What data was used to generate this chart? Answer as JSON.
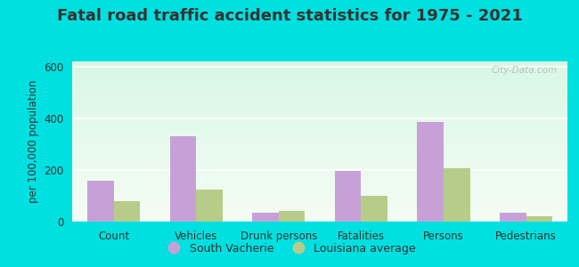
{
  "title": "Fatal road traffic accident statistics for 1975 - 2021",
  "categories": [
    "Count",
    "Vehicles",
    "Drunk persons",
    "Fatalities",
    "Persons",
    "Pedestrians"
  ],
  "south_vacherie": [
    160,
    330,
    35,
    195,
    385,
    35
  ],
  "louisiana_avg": [
    80,
    125,
    40,
    100,
    205,
    20
  ],
  "bar_color_sv": "#c8a0d8",
  "bar_color_la": "#b8cc8a",
  "ylabel": "per 100,000 population",
  "ylim": [
    0,
    620
  ],
  "yticks": [
    0,
    200,
    400,
    600
  ],
  "legend_sv": "South Vacherie",
  "legend_la": "Louisiana average",
  "bg_outer": "#00e0e0",
  "watermark": "City-Data.com",
  "title_fontsize": 13,
  "axis_fontsize": 8.5,
  "legend_fontsize": 9,
  "text_color": "#333333"
}
